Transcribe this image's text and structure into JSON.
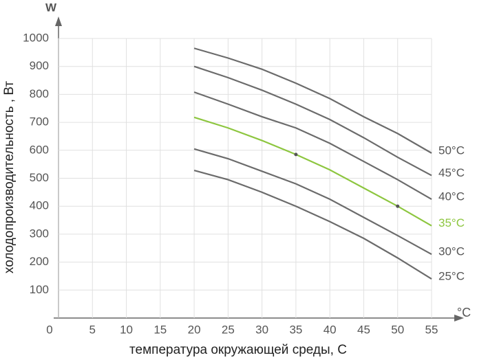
{
  "chart_data": {
    "type": "line",
    "y_label": "холодопроизводительность , Вт",
    "x_label": "температура окружающей среды, С",
    "y_unit": "W",
    "x_unit": "°C",
    "x": [
      20,
      25,
      30,
      35,
      40,
      45,
      50,
      55
    ],
    "xlim": [
      0,
      55
    ],
    "xticks": [
      0,
      5,
      10,
      15,
      20,
      25,
      30,
      35,
      40,
      45,
      50,
      55
    ],
    "ylim": [
      0,
      1000
    ],
    "yticks": [
      100,
      200,
      300,
      400,
      500,
      600,
      700,
      800,
      900,
      1000
    ],
    "grid": true,
    "series": [
      {
        "name": "50°C",
        "color": "#6b6b6b",
        "values": [
          965,
          930,
          890,
          840,
          785,
          720,
          660,
          590
        ]
      },
      {
        "name": "45°C",
        "color": "#6b6b6b",
        "values": [
          900,
          860,
          815,
          765,
          710,
          645,
          575,
          510
        ]
      },
      {
        "name": "40°C",
        "color": "#6b6b6b",
        "values": [
          808,
          765,
          720,
          680,
          625,
          560,
          495,
          425
        ]
      },
      {
        "name": "35°C",
        "color": "#8dc63f",
        "values": [
          718,
          680,
          635,
          585,
          530,
          465,
          400,
          330
        ],
        "markers_at": [
          35,
          50
        ]
      },
      {
        "name": "30°C",
        "color": "#6b6b6b",
        "values": [
          605,
          570,
          525,
          480,
          425,
          360,
          295,
          228
        ]
      },
      {
        "name": "25°C",
        "color": "#6b6b6b",
        "values": [
          528,
          495,
          450,
          400,
          345,
          285,
          215,
          140
        ]
      }
    ]
  }
}
